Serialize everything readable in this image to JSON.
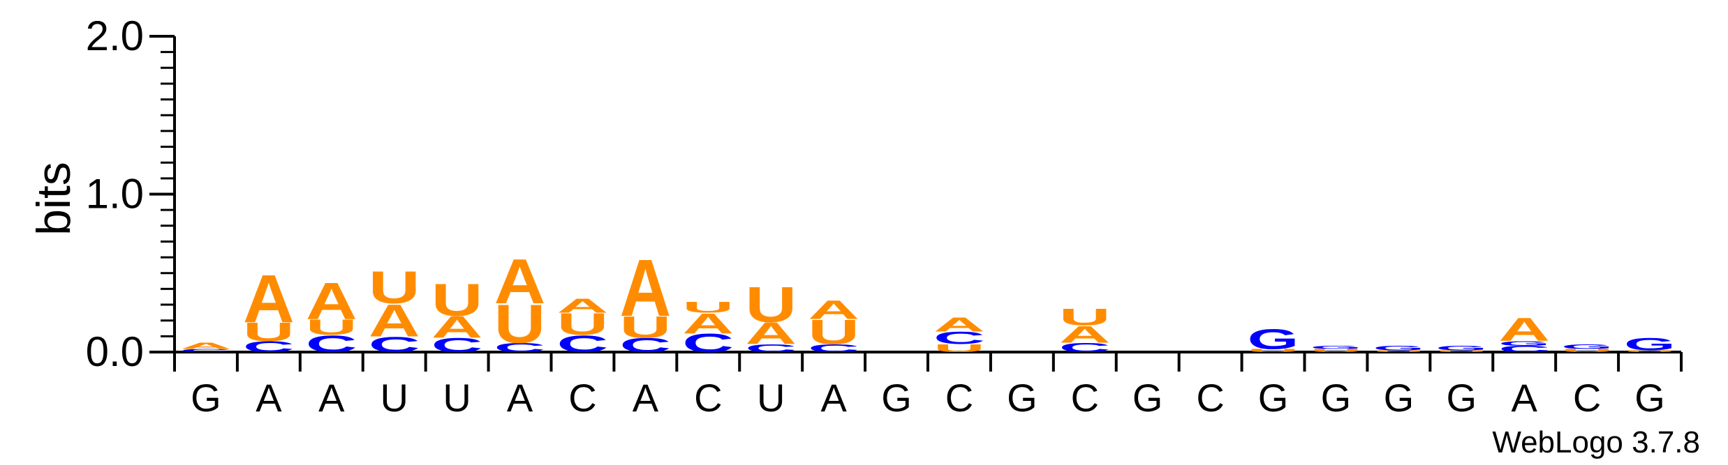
{
  "chart_data": {
    "type": "sequence-logo",
    "ylabel": "bits",
    "ylim": [
      0,
      2.0
    ],
    "y_ticks": [
      "0.0",
      "1.0",
      "2.0"
    ],
    "x_labels": [
      "G",
      "A",
      "A",
      "U",
      "U",
      "A",
      "C",
      "A",
      "C",
      "U",
      "A",
      "G",
      "C",
      "G",
      "C",
      "G",
      "C",
      "G",
      "G",
      "G",
      "G",
      "A",
      "C",
      "G"
    ],
    "colors": {
      "A": "#FF8C00",
      "U": "#FF8C00",
      "C": "#0000FF",
      "G": "#0000FF"
    },
    "positions": [
      {
        "stack": [
          {
            "letter": "C",
            "bits": 0.02
          },
          {
            "letter": "A",
            "bits": 0.04
          }
        ]
      },
      {
        "stack": [
          {
            "letter": "C",
            "bits": 0.07
          },
          {
            "letter": "U",
            "bits": 0.12
          },
          {
            "letter": "A",
            "bits": 0.31
          }
        ]
      },
      {
        "stack": [
          {
            "letter": "C",
            "bits": 0.11
          },
          {
            "letter": "U",
            "bits": 0.1
          },
          {
            "letter": "A",
            "bits": 0.24
          }
        ]
      },
      {
        "stack": [
          {
            "letter": "C",
            "bits": 0.1
          },
          {
            "letter": "A",
            "bits": 0.21
          },
          {
            "letter": "U",
            "bits": 0.21
          }
        ]
      },
      {
        "stack": [
          {
            "letter": "C",
            "bits": 0.09
          },
          {
            "letter": "A",
            "bits": 0.14
          },
          {
            "letter": "U",
            "bits": 0.21
          }
        ]
      },
      {
        "stack": [
          {
            "letter": "C",
            "bits": 0.06
          },
          {
            "letter": "U",
            "bits": 0.25
          },
          {
            "letter": "A",
            "bits": 0.29
          }
        ]
      },
      {
        "stack": [
          {
            "letter": "C",
            "bits": 0.11
          },
          {
            "letter": "U",
            "bits": 0.14
          },
          {
            "letter": "A",
            "bits": 0.09
          }
        ]
      },
      {
        "stack": [
          {
            "letter": "C",
            "bits": 0.09
          },
          {
            "letter": "U",
            "bits": 0.14
          },
          {
            "letter": "A",
            "bits": 0.37
          }
        ]
      },
      {
        "stack": [
          {
            "letter": "C",
            "bits": 0.12
          },
          {
            "letter": "A",
            "bits": 0.13
          },
          {
            "letter": "U",
            "bits": 0.07
          }
        ]
      },
      {
        "stack": [
          {
            "letter": "C",
            "bits": 0.05
          },
          {
            "letter": "A",
            "bits": 0.14
          },
          {
            "letter": "U",
            "bits": 0.23
          }
        ]
      },
      {
        "stack": [
          {
            "letter": "C",
            "bits": 0.05
          },
          {
            "letter": "U",
            "bits": 0.16
          },
          {
            "letter": "A",
            "bits": 0.12
          }
        ]
      },
      {
        "stack": []
      },
      {
        "stack": [
          {
            "letter": "U",
            "bits": 0.05
          },
          {
            "letter": "C",
            "bits": 0.08
          },
          {
            "letter": "A",
            "bits": 0.09
          }
        ]
      },
      {
        "stack": []
      },
      {
        "stack": [
          {
            "letter": "C",
            "bits": 0.06
          },
          {
            "letter": "A",
            "bits": 0.11
          },
          {
            "letter": "U",
            "bits": 0.11
          }
        ]
      },
      {
        "stack": []
      },
      {
        "stack": []
      },
      {
        "stack": [
          {
            "letter": "U",
            "bits": 0.02
          },
          {
            "letter": "G",
            "bits": 0.13
          }
        ]
      },
      {
        "stack": [
          {
            "letter": "U",
            "bits": 0.02
          },
          {
            "letter": "G",
            "bits": 0.02
          }
        ]
      },
      {
        "stack": [
          {
            "letter": "U",
            "bits": 0.01
          },
          {
            "letter": "G",
            "bits": 0.03
          }
        ]
      },
      {
        "stack": [
          {
            "letter": "U",
            "bits": 0.01
          },
          {
            "letter": "G",
            "bits": 0.03
          }
        ]
      },
      {
        "stack": [
          {
            "letter": "C",
            "bits": 0.04
          },
          {
            "letter": "G",
            "bits": 0.03
          },
          {
            "letter": "A",
            "bits": 0.15
          }
        ]
      },
      {
        "stack": [
          {
            "letter": "U",
            "bits": 0.02
          },
          {
            "letter": "G",
            "bits": 0.03
          }
        ]
      },
      {
        "stack": [
          {
            "letter": "U",
            "bits": 0.01
          },
          {
            "letter": "G",
            "bits": 0.08
          }
        ]
      }
    ]
  },
  "footer": {
    "credit": "WebLogo 3.7.8"
  }
}
